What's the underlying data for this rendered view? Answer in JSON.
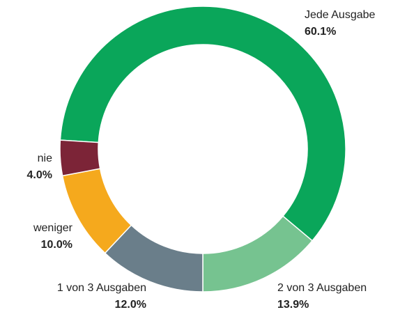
{
  "chart_data": {
    "type": "donut",
    "categories": [
      "Jede Ausgabe",
      "2 von 3 Ausgaben",
      "1 von 3 Ausgaben",
      "weniger",
      "nie"
    ],
    "values": [
      60.1,
      13.9,
      12.0,
      10.0,
      4.0
    ],
    "value_labels": [
      "60.1%",
      "13.9%",
      "12.0%",
      "10.0%",
      "4.0%"
    ],
    "colors": [
      "#0aa65a",
      "#76c390",
      "#6a7e8a",
      "#f5a91d",
      "#7c2437"
    ]
  }
}
